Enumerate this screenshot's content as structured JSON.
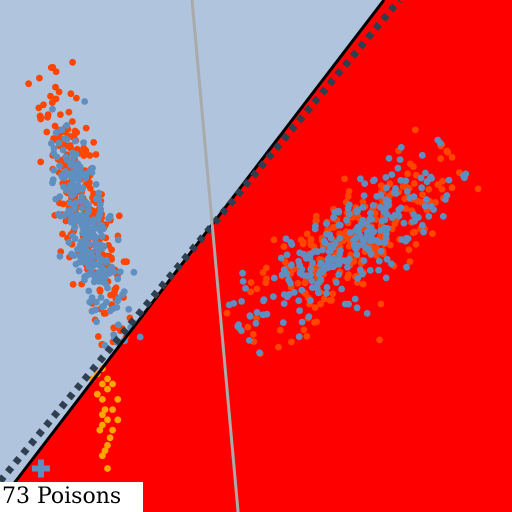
{
  "colors": {
    "region_left": "#b0c4de",
    "region_right": "#ff0000",
    "boundary_solid": "#000000",
    "boundary_dashed": "#2f3f4f",
    "gray_line": "#aaaaaa",
    "orange": "#ff4500",
    "steelblue": "#5f8fc0",
    "gold": "#ffa500"
  },
  "caption": "73 Poisons",
  "chart_data": {
    "type": "scatter",
    "xlim": [
      0,
      1
    ],
    "ylim": [
      0,
      1
    ],
    "grid": false,
    "legend": "none",
    "title": "",
    "xlabel": "",
    "ylabel": "",
    "regions": [
      {
        "name": "",
        "color": "#b0c4de",
        "side": "upper-left"
      },
      {
        "name": "",
        "color": "#ff0000",
        "side": "lower-right"
      }
    ],
    "lines": [
      {
        "style": "solid",
        "color": "#000000",
        "points": [
          [
            0.0,
            0.02
          ],
          [
            0.75,
            1.0
          ]
        ]
      },
      {
        "style": "dashed",
        "color": "#2f3f4f",
        "points": [
          [
            0.0,
            0.06
          ],
          [
            0.78,
            1.0
          ]
        ]
      },
      {
        "style": "solid",
        "color": "#aaaaaa",
        "points": [
          [
            0.375,
            1.0
          ],
          [
            0.465,
            0.0
          ]
        ]
      }
    ],
    "series": [
      {
        "color": "#ff4500",
        "cluster": {
          "center": [
            0.16,
            0.6
          ],
          "axis": [
            -0.11,
            0.44
          ],
          "spread": [
            0.3,
            0.025
          ]
        }
      },
      {
        "color": "#5f8fc0",
        "cluster": {
          "center": [
            0.17,
            0.56
          ],
          "axis": [
            -0.09,
            0.38
          ],
          "spread": [
            0.28,
            0.02
          ]
        }
      },
      {
        "color": "#ff4500",
        "cluster": {
          "center": [
            0.68,
            0.52
          ],
          "axis": [
            0.34,
            0.28
          ],
          "spread": [
            0.28,
            0.045
          ]
        }
      },
      {
        "color": "#5f8fc0",
        "cluster": {
          "center": [
            0.68,
            0.52
          ],
          "axis": [
            0.34,
            0.28
          ],
          "spread": [
            0.28,
            0.04
          ]
        }
      },
      {
        "color": "#ffa500",
        "points": [
          [
            0.19,
            0.27
          ],
          [
            0.2,
            0.25
          ],
          [
            0.21,
            0.24
          ],
          [
            0.2,
            0.22
          ],
          [
            0.22,
            0.2
          ],
          [
            0.21,
            0.18
          ],
          [
            0.2,
            0.19
          ],
          [
            0.22,
            0.16
          ],
          [
            0.21,
            0.13
          ],
          [
            0.2,
            0.17
          ],
          [
            0.23,
            0.22
          ],
          [
            0.19,
            0.23
          ],
          [
            0.21,
            0.26
          ],
          [
            0.215,
            0.145
          ],
          [
            0.205,
            0.2
          ],
          [
            0.23,
            0.18
          ],
          [
            0.18,
            0.26
          ],
          [
            0.2,
            0.28
          ],
          [
            0.22,
            0.25
          ],
          [
            0.195,
            0.16
          ],
          [
            0.205,
            0.12
          ],
          [
            0.21,
            0.085
          ],
          [
            0.2,
            0.11
          ]
        ]
      },
      {
        "color": "#5f8fc0",
        "marker": "plus",
        "points": [
          [
            0.08,
            0.085
          ]
        ]
      }
    ]
  }
}
